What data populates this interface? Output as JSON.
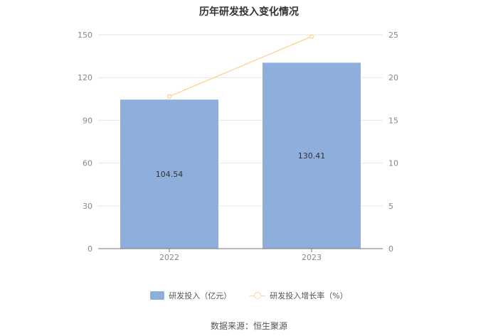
{
  "chart_data": {
    "type": "bar",
    "title": "历年研发投入变化情况",
    "categories": [
      "2022",
      "2023"
    ],
    "series": [
      {
        "name": "研发投入（亿元）",
        "type": "bar",
        "axis": "left",
        "values": [
          104.54,
          130.41
        ],
        "color": "#8eaedb"
      },
      {
        "name": "研发投入增长率（%）",
        "type": "line",
        "axis": "right",
        "values": [
          17.8,
          24.8
        ],
        "color": "#fbd7a0"
      }
    ],
    "y_left": {
      "min": 0,
      "max": 150,
      "ticks": [
        0,
        30,
        60,
        90,
        120,
        150
      ]
    },
    "y_right": {
      "min": 0,
      "max": 25,
      "ticks": [
        0,
        5,
        10,
        15,
        20,
        25
      ]
    },
    "data_labels": [
      "104.54",
      "130.41"
    ],
    "grid": true,
    "legend_position": "bottom"
  },
  "source": "数据来源：恒生聚源"
}
